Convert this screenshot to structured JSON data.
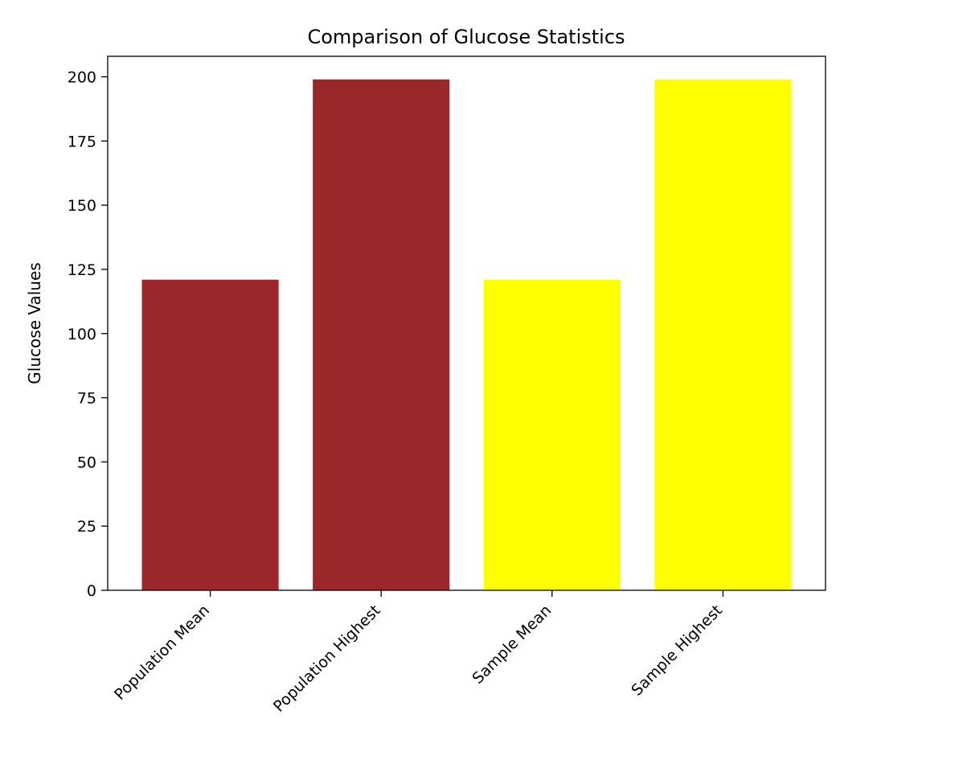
{
  "chart_data": {
    "type": "bar",
    "title": "Comparison of Glucose Statistics",
    "xlabel": "",
    "ylabel": "Glucose Values",
    "categories": [
      "Population Mean",
      "Population Highest",
      "Sample Mean",
      "Sample Highest"
    ],
    "values": [
      121,
      199,
      121,
      199
    ],
    "colors": [
      "#9b272b",
      "#9b272b",
      "#ffff00",
      "#ffff00"
    ],
    "ylim": [
      0,
      208
    ],
    "yticks": [
      0,
      25,
      50,
      75,
      100,
      125,
      150,
      175,
      200
    ],
    "grid": false,
    "xtick_rotation": -45
  }
}
